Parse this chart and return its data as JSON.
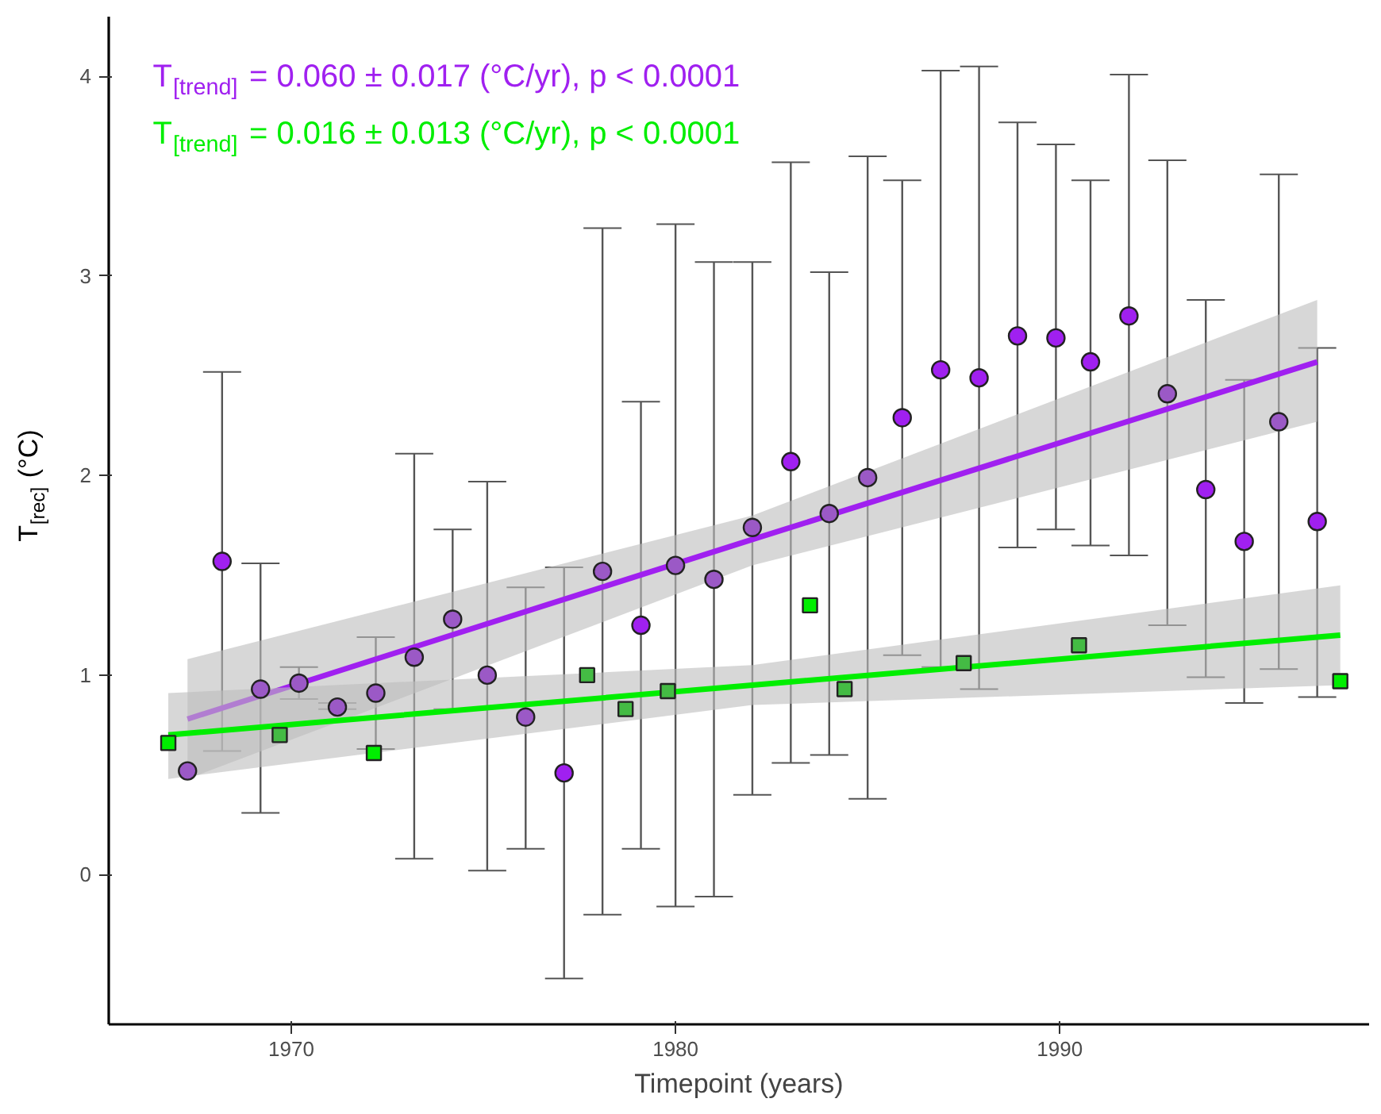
{
  "chart_data": {
    "type": "scatter",
    "xlabel": "Timepoint (years)",
    "ylabel": "T$_{[rec]}$ (°C)",
    "xlim": [
      1965.25,
      1998.05
    ],
    "xticks": [
      1970,
      1980,
      1990
    ],
    "ylim": [
      -0.75,
      4.3
    ],
    "yticks": [
      0,
      1,
      2,
      3,
      4
    ],
    "grid": false,
    "legend": "top left",
    "series": [
      {
        "marker": "circle",
        "x": [
          1967.3,
          1968.2,
          1969.2,
          1970.2,
          1971.2,
          1972.2,
          1973.2,
          1974.2,
          1975.1,
          1976.1,
          1977.1,
          1978.1,
          1979.1,
          1980.0,
          1981.0,
          1982.0,
          1983.0,
          1984.0,
          1985.0,
          1985.9,
          1986.9,
          1987.9,
          1988.9,
          1989.9,
          1990.8,
          1991.8,
          1992.8,
          1993.8,
          1994.8,
          1995.7,
          1996.7
        ],
        "values": [
          0.52,
          1.57,
          0.93,
          0.96,
          0.84,
          0.91,
          1.09,
          1.28,
          1.0,
          0.79,
          0.51,
          1.52,
          1.25,
          1.55,
          1.48,
          1.74,
          2.07,
          1.81,
          1.99,
          2.29,
          2.53,
          2.49,
          2.7,
          2.69,
          2.57,
          2.8,
          2.41,
          1.93,
          1.67,
          2.27,
          1.77
        ],
        "errors": [
          null,
          [
            0.62,
            2.52
          ],
          [
            0.31,
            1.56
          ],
          [
            0.88,
            1.04
          ],
          [
            0.83,
            0.86
          ],
          [
            0.63,
            1.19
          ],
          [
            0.08,
            2.11
          ],
          [
            0.83,
            1.73
          ],
          [
            0.02,
            1.97
          ],
          [
            0.13,
            1.44
          ],
          [
            -0.52,
            1.54
          ],
          [
            -0.2,
            3.24
          ],
          [
            0.13,
            2.37
          ],
          [
            -0.16,
            3.26
          ],
          [
            -0.11,
            3.07
          ],
          [
            0.4,
            3.07
          ],
          [
            0.56,
            3.57
          ],
          [
            0.6,
            3.02
          ],
          [
            0.38,
            3.6
          ],
          [
            1.1,
            3.48
          ],
          [
            1.04,
            4.03
          ],
          [
            0.93,
            4.05
          ],
          [
            1.64,
            3.77
          ],
          [
            1.73,
            3.66
          ],
          [
            1.65,
            3.48
          ],
          [
            1.6,
            4.01
          ],
          [
            1.25,
            3.58
          ],
          [
            0.99,
            2.88
          ],
          [
            0.86,
            2.48
          ],
          [
            1.03,
            3.51
          ],
          [
            0.89,
            2.64
          ]
        ],
        "colors": [
          "#9b59c6",
          "#a020f0",
          "#9b59c6",
          "#9b59c6",
          "#9b59c6",
          "#9b59c6",
          "#9b59c6",
          "#9b59c6",
          "#9b59c6",
          "#9b59c6",
          "#a020f0",
          "#9b59c6",
          "#a020f0",
          "#9b59c6",
          "#9b59c6",
          "#9b59c6",
          "#a020f0",
          "#9b59c6",
          "#9b59c6",
          "#a020f0",
          "#a020f0",
          "#a020f0",
          "#a020f0",
          "#a020f0",
          "#a020f0",
          "#a020f0",
          "#9b59c6",
          "#a020f0",
          "#a020f0",
          "#9b59c6",
          "#a020f0"
        ]
      },
      {
        "marker": "square",
        "x": [
          1966.8,
          1969.7,
          1972.15,
          1977.7,
          1978.7,
          1979.8,
          1983.5,
          1984.4,
          1987.5,
          1990.5,
          1997.3
        ],
        "values": [
          0.66,
          0.7,
          0.61,
          1.0,
          0.83,
          0.92,
          1.35,
          0.93,
          1.06,
          1.15,
          0.97
        ],
        "colors": [
          "#00ee00",
          "#44bb44",
          "#00ee00",
          "#44bb44",
          "#44bb44",
          "#44bb44",
          "#00ee00",
          "#44bb44",
          "#44bb44",
          "#44bb44",
          "#00ee00"
        ]
      },
      {
        "type": "line",
        "name": "T$_{[trend]}$ = 0.060 ± 0.017 (°C/yr), p < 0.0001",
        "color": "#a020f0",
        "x": [
          1967.3,
          1982.0,
          1996.7
        ],
        "values": [
          0.78,
          1.68,
          2.57
        ],
        "lower": [
          0.48,
          1.55,
          2.27
        ],
        "upper": [
          1.08,
          1.8,
          2.88
        ]
      },
      {
        "type": "line",
        "name": "T$_{[trend]}$ = 0.016 ± 0.013 (°C/yr), p < 0.0001",
        "color": "#00ee00",
        "x": [
          1966.8,
          1982.0,
          1997.3
        ],
        "values": [
          0.7,
          0.95,
          1.2
        ],
        "lower": [
          0.48,
          0.85,
          0.95
        ],
        "upper": [
          0.91,
          1.05,
          1.45
        ]
      }
    ]
  }
}
